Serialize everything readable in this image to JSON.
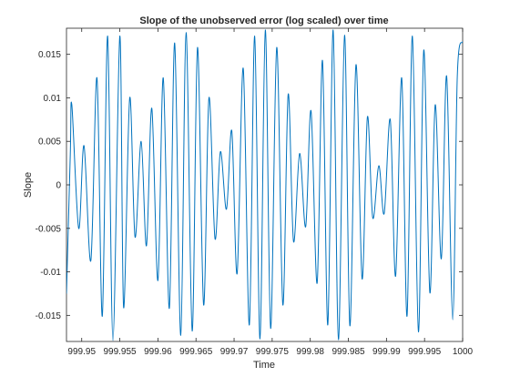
{
  "chart_data": {
    "type": "line",
    "title": "Slope of the unobserved error (log scaled) over time",
    "xlabel": "Time",
    "ylabel": "Slope",
    "xlim": [
      999.948,
      1000
    ],
    "ylim": [
      -0.018,
      0.018
    ],
    "grid": false,
    "line_color": "#0072bd",
    "axis_color": "#262626",
    "xticks": [
      999.95,
      999.955,
      999.96,
      999.965,
      999.97,
      999.975,
      999.98,
      999.985,
      999.99,
      999.995,
      1000
    ],
    "xtick_labels": [
      "999.95",
      "999.955",
      "999.96",
      "999.965",
      "999.97",
      "999.975",
      "999.98",
      "999.985",
      "999.99",
      "999.995",
      "1000"
    ],
    "yticks": [
      -0.015,
      -0.01,
      -0.005,
      0,
      0.005,
      0.01,
      0.015
    ],
    "ytick_labels": [
      "-0.015",
      "-0.01",
      "-0.005",
      "0",
      "0.005",
      "0.01",
      "0.015"
    ],
    "series": [
      {
        "x": [
          999.948,
          999.9485,
          999.9487,
          999.9496,
          999.9503,
          999.9512,
          999.952,
          999.9527,
          999.9534,
          999.9541,
          999.955,
          999.9555,
          999.9563,
          999.957,
          999.9578,
          999.9585,
          999.9592,
          999.96,
          999.9607,
          999.9615,
          999.9622,
          999.963,
          999.9637,
          999.9645,
          999.9652,
          999.966,
          999.9667,
          999.9675,
          999.9682,
          999.969,
          999.9697,
          999.9704,
          999.9712,
          999.972,
          999.9727,
          999.9734,
          999.9741,
          999.9748,
          999.9756,
          999.9764,
          999.9771,
          999.9778,
          999.9786,
          999.9794,
          999.9801,
          999.9809,
          999.9816,
          999.9823,
          999.983,
          999.9837,
          999.9845,
          999.9852,
          999.986,
          999.9868,
          999.9875,
          999.9882,
          999.989,
          999.9897,
          999.9905,
          999.9912,
          999.992,
          999.9927,
          999.9934,
          999.9942,
          999.9949,
          999.9957,
          999.9964,
          999.9972,
          999.9979,
          999.9987,
          999.9993,
          1000
        ],
        "y": [
          -0.0125,
          0.0035,
          0.0092,
          -0.005,
          0.0045,
          -0.0087,
          0.0123,
          -0.0151,
          0.0171,
          -0.0179,
          0.0171,
          -0.0141,
          0.01,
          -0.006,
          0.005,
          -0.007,
          0.0088,
          -0.011,
          0.0123,
          -0.0142,
          0.0163,
          -0.0173,
          0.0175,
          -0.0168,
          0.0158,
          -0.0138,
          0.01,
          -0.0062,
          0.0038,
          -0.0028,
          0.0062,
          -0.0102,
          0.0134,
          -0.0161,
          0.0171,
          -0.0177,
          0.0178,
          -0.0165,
          0.0158,
          -0.0138,
          0.0104,
          -0.0065,
          0.0036,
          -0.0048,
          0.0085,
          -0.0113,
          0.0143,
          -0.0161,
          0.0178,
          -0.0178,
          0.0172,
          -0.0162,
          0.0138,
          -0.0108,
          0.0078,
          -0.0038,
          0.0022,
          -0.0033,
          0.0075,
          -0.0105,
          0.0123,
          -0.0151,
          0.0171,
          -0.0169,
          0.0155,
          -0.0124,
          0.0092,
          -0.0085,
          0.0125,
          -0.0155,
          0.0125,
          0.0165
        ]
      }
    ]
  }
}
